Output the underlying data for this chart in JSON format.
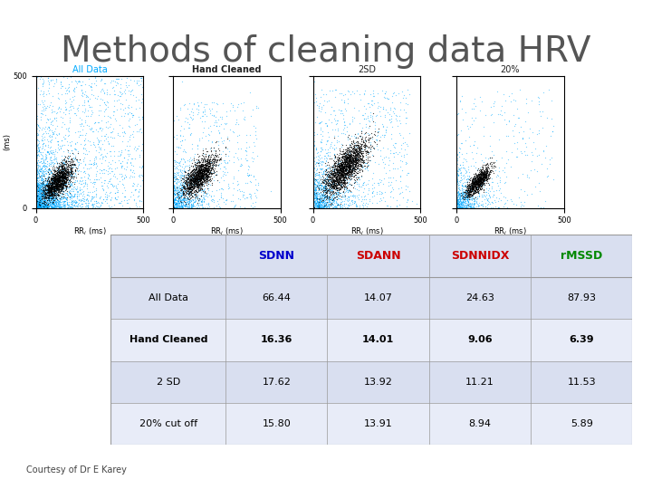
{
  "title": "Methods of cleaning data HRV",
  "title_fontsize": 28,
  "title_color": "#555555",
  "bg_color": "#ffffff",
  "scatter_labels": [
    "All Data",
    "Hand Cleaned",
    "2SD",
    "20%"
  ],
  "scatter_label_colors": [
    "#00aaff",
    "#222222",
    "#222222",
    "#222222"
  ],
  "axis_max": 500,
  "table_col_labels": [
    "SDNN",
    "SDANN",
    "SDNNIDX",
    "rMSSD"
  ],
  "table_col_colors": [
    "#0000cc",
    "#cc0000",
    "#cc0000",
    "#008800"
  ],
  "table_row_labels": [
    "All Data",
    "Hand Cleaned",
    "2 SD",
    "20% cut off"
  ],
  "table_row_bold": [
    false,
    true,
    false,
    false
  ],
  "table_data": [
    [
      66.44,
      14.07,
      24.63,
      87.93
    ],
    [
      16.36,
      14.01,
      9.06,
      6.39
    ],
    [
      17.62,
      13.92,
      11.21,
      11.53
    ],
    [
      15.8,
      13.91,
      8.94,
      5.89
    ]
  ],
  "table_data_bold": [
    [
      false,
      false,
      false,
      false
    ],
    [
      true,
      true,
      true,
      true
    ],
    [
      false,
      false,
      false,
      false
    ],
    [
      false,
      false,
      false,
      false
    ]
  ],
  "courtesy_text": "Courtesy of Dr E Karey",
  "seed": 42
}
